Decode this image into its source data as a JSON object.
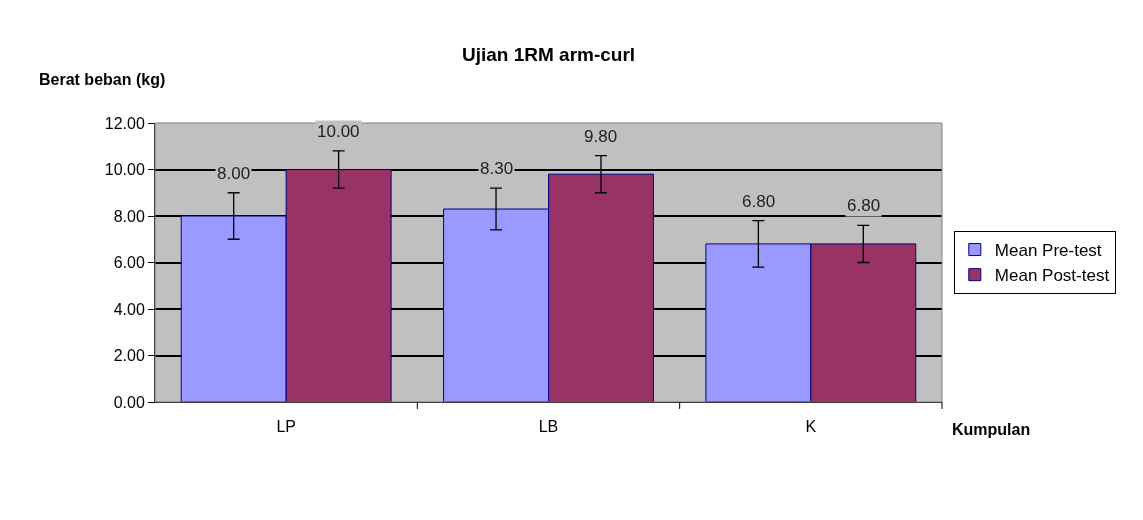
{
  "chart_data": {
    "type": "bar",
    "title": "Ujian 1RM arm-curl",
    "xlabel": "Kumpulan",
    "ylabel": "Berat beban (kg)",
    "categories": [
      "LP",
      "LB",
      "K"
    ],
    "series": [
      {
        "name": "Mean Pre-test",
        "color": "#9999ff",
        "values": [
          8.0,
          8.3,
          6.8
        ],
        "errors": [
          1.0,
          0.9,
          1.0
        ],
        "value_labels": [
          "8.00",
          "8.30",
          "6.80"
        ]
      },
      {
        "name": "Mean Post-test",
        "color": "#993366",
        "values": [
          10.0,
          9.8,
          6.8
        ],
        "errors": [
          0.8,
          0.8,
          0.8
        ],
        "value_labels": [
          "10.00",
          "9.80",
          "6.80"
        ]
      }
    ],
    "ylim": [
      0,
      12
    ],
    "yticks": [
      {
        "value": 0,
        "label": "0.00"
      },
      {
        "value": 2,
        "label": "2.00"
      },
      {
        "value": 4,
        "label": "4.00"
      },
      {
        "value": 6,
        "label": "6.00"
      },
      {
        "value": 8,
        "label": "8.00"
      },
      {
        "value": 10,
        "label": "10.00"
      },
      {
        "value": 12,
        "label": "12.00"
      }
    ],
    "grid": "y",
    "legend": "right"
  }
}
